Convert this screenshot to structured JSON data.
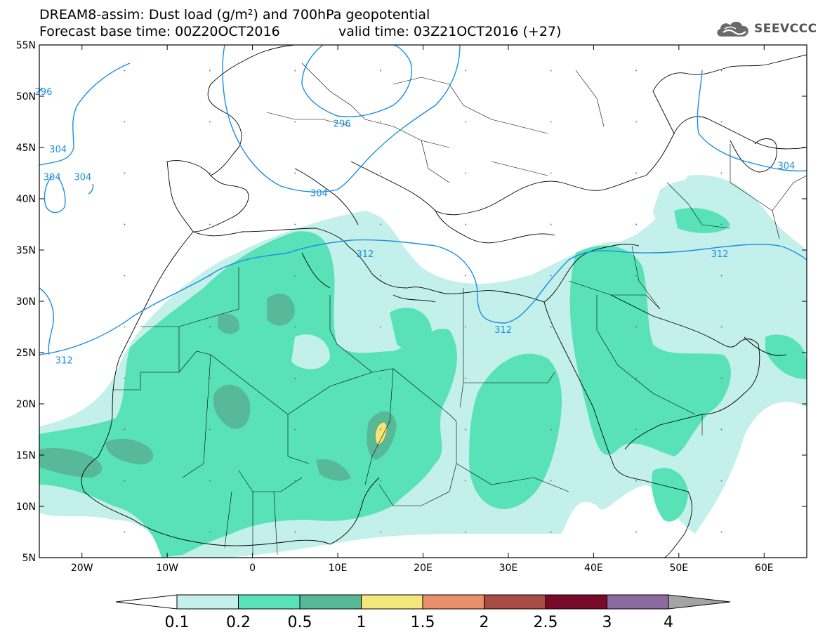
{
  "header": {
    "title_line1": "DREAM8-assim: Dust load (g/m²) and 700hPa geopotential",
    "title_line2a": "Forecast base time: 00Z20OCT2016",
    "title_line2b": "valid time: 03Z21OCT2016 (+27)"
  },
  "logo": {
    "text": "SEEVCCC",
    "icon": "cloud-icon"
  },
  "map": {
    "lon_range": [
      -25,
      65
    ],
    "lat_range": [
      5,
      55
    ],
    "lat_ticks": [
      {
        "value": 55,
        "label": "55N"
      },
      {
        "value": 50,
        "label": "50N"
      },
      {
        "value": 45,
        "label": "45N"
      },
      {
        "value": 40,
        "label": "40N"
      },
      {
        "value": 35,
        "label": "35N"
      },
      {
        "value": 30,
        "label": "30N"
      },
      {
        "value": 25,
        "label": "25N"
      },
      {
        "value": 20,
        "label": "20N"
      },
      {
        "value": 15,
        "label": "15N"
      },
      {
        "value": 10,
        "label": "10N"
      },
      {
        "value": 5,
        "label": "5N"
      }
    ],
    "lon_ticks": [
      {
        "value": -20,
        "label": "20W"
      },
      {
        "value": -10,
        "label": "10W"
      },
      {
        "value": 0,
        "label": "0"
      },
      {
        "value": 10,
        "label": "10E"
      },
      {
        "value": 20,
        "label": "20E"
      },
      {
        "value": 30,
        "label": "30E"
      },
      {
        "value": 40,
        "label": "40E"
      },
      {
        "value": 50,
        "label": "50E"
      },
      {
        "value": 60,
        "label": "60E"
      }
    ],
    "contour_labels": [
      {
        "text": "296",
        "lon": -24.5,
        "lat": 50.4
      },
      {
        "text": "296",
        "lon": 10.5,
        "lat": 47.3
      },
      {
        "text": "304",
        "lon": -22.8,
        "lat": 44.8
      },
      {
        "text": "304",
        "lon": -23.5,
        "lat": 42.1
      },
      {
        "text": "304",
        "lon": -19.9,
        "lat": 42.1
      },
      {
        "text": "304",
        "lon": 7.8,
        "lat": 40.5
      },
      {
        "text": "304",
        "lon": 62.6,
        "lat": 43.2
      },
      {
        "text": "312",
        "lon": 13.2,
        "lat": 34.6
      },
      {
        "text": "312",
        "lon": 54.8,
        "lat": 34.6
      },
      {
        "text": "312",
        "lon": 29.4,
        "lat": 27.2
      },
      {
        "text": "312",
        "lon": -22.1,
        "lat": 24.2
      }
    ],
    "colors": {
      "c01": "#c3f0ea",
      "c02": "#59e2b8",
      "c05": "#57b997",
      "c1": "#f3e77b",
      "c15": "#e98f6c",
      "c2": "#a84b42",
      "c25": "#7a0a2a",
      "c3": "#8a6aa0",
      "over": "#a4a4a4",
      "contour": "#1a8fe0"
    }
  },
  "colorbar": {
    "labels": [
      "0.1",
      "0.2",
      "0.5",
      "1",
      "1.5",
      "2",
      "2.5",
      "3",
      "4"
    ],
    "colors": [
      "#c3f0ea",
      "#59e2b8",
      "#57b997",
      "#f3e77b",
      "#e98f6c",
      "#a84b42",
      "#7a0a2a",
      "#8a6aa0"
    ],
    "under_color": "#ffffff",
    "over_color": "#a4a4a4"
  }
}
